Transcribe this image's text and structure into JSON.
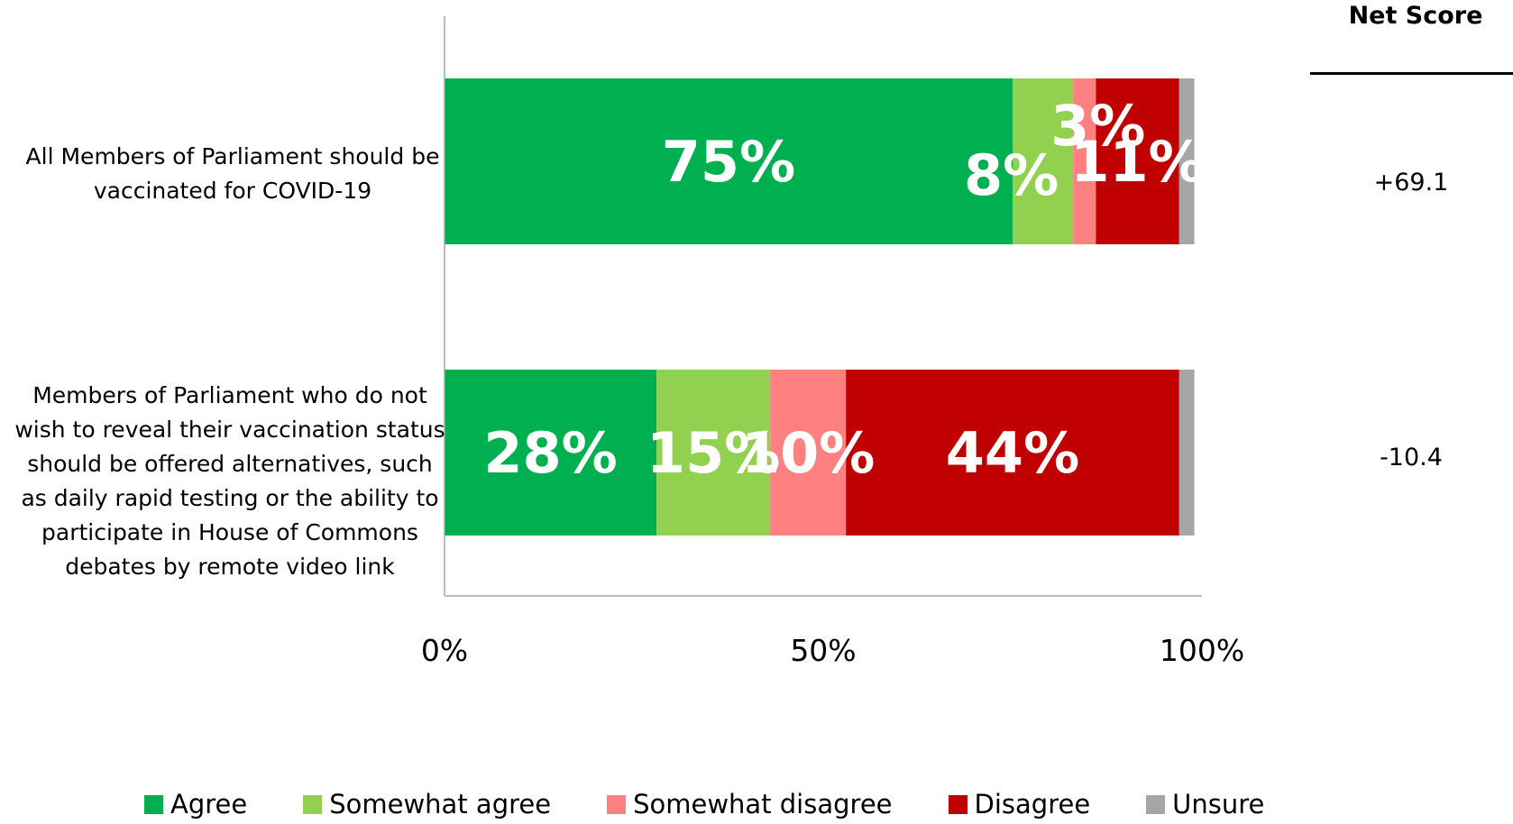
{
  "chart_data": {
    "type": "bar",
    "orientation": "horizontal",
    "stacked": true,
    "categories": [
      "All Members of Parliament should be vaccinated for COVID-19",
      "Members of Parliament who do not wish to reveal their vaccination status should be offered alternatives, such as daily rapid testing or the ability to participate in House of Commons debates by remote video link"
    ],
    "category_lines": [
      [
        "All Members of Parliament should be",
        "vaccinated for COVID-19"
      ],
      [
        "Members of Parliament who do not",
        "wish to reveal their vaccination status",
        "should be offered alternatives, such",
        "as daily rapid testing or the ability to",
        "participate in House of Commons",
        "debates by remote video link"
      ]
    ],
    "series": [
      {
        "name": "Agree",
        "color": "#00B050",
        "values": [
          75,
          28
        ],
        "labels": [
          "75%",
          "28%"
        ]
      },
      {
        "name": "Somewhat agree",
        "color": "#92D050",
        "values": [
          8,
          15
        ],
        "labels": [
          "8%",
          "15%"
        ]
      },
      {
        "name": "Somewhat disagree",
        "color": "#FF8080",
        "values": [
          3,
          10
        ],
        "labels": [
          "3%",
          "10%"
        ]
      },
      {
        "name": "Disagree",
        "color": "#C00000",
        "values": [
          11,
          44
        ],
        "labels": [
          "11%",
          "44%"
        ]
      },
      {
        "name": "Unsure",
        "color": "#A6A6A6",
        "values": [
          2,
          2
        ],
        "labels": [
          "",
          ""
        ]
      }
    ],
    "xlim": [
      0,
      100
    ],
    "xticks": [
      "0%",
      "50%",
      "100%"
    ],
    "grid": false,
    "legend_position": "bottom",
    "net_score": {
      "header": "Net Score",
      "values": [
        "+69.1",
        "-10.4"
      ]
    }
  }
}
